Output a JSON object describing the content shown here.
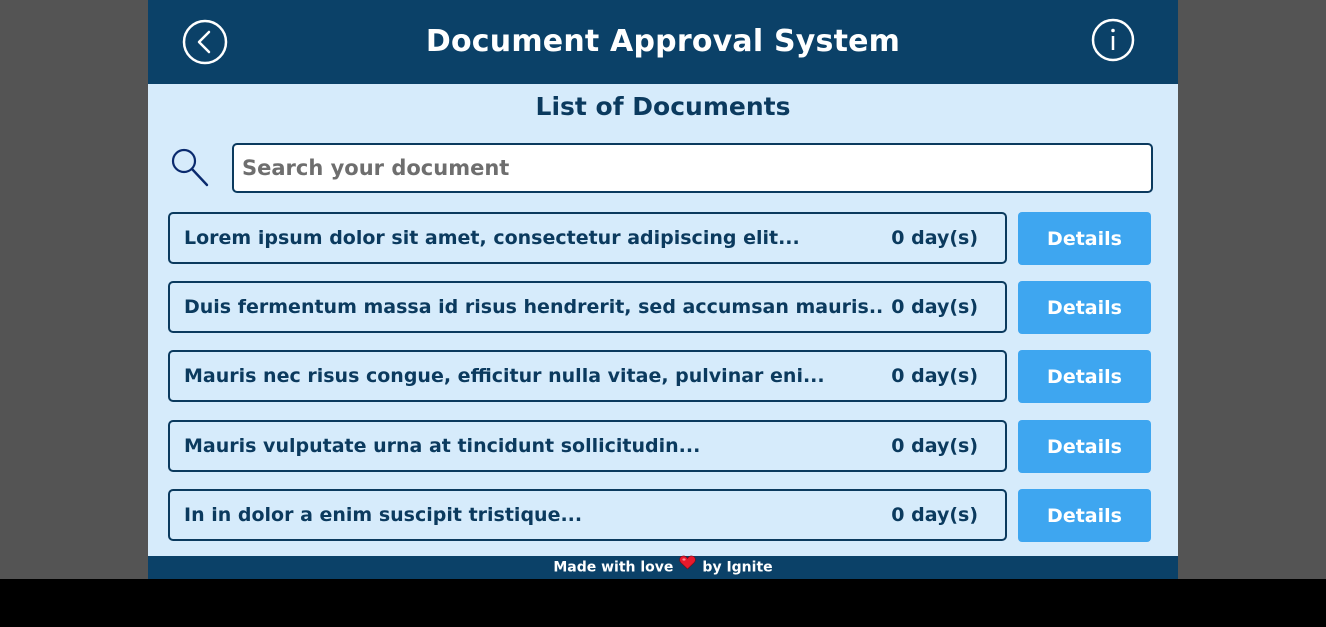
{
  "header": {
    "title": "Document Approval System"
  },
  "main": {
    "subtitle": "List of Documents",
    "search": {
      "placeholder": "Search your document",
      "value": ""
    },
    "documents": [
      {
        "title": "Lorem ipsum dolor sit amet, consectetur adipiscing elit...",
        "days": "0 day(s)",
        "action_label": "Details"
      },
      {
        "title": "Duis fermentum massa id risus hendrerit, sed accumsan mauris...",
        "days": "0 day(s)",
        "action_label": "Details"
      },
      {
        "title": "Mauris nec risus congue, efficitur nulla vitae, pulvinar eni...",
        "days": "0 day(s)",
        "action_label": "Details"
      },
      {
        "title": "Mauris vulputate urna at tincidunt sollicitudin...",
        "days": "0 day(s)",
        "action_label": "Details"
      },
      {
        "title": "In in dolor a enim suscipit tristique...",
        "days": "0 day(s)",
        "action_label": "Details"
      }
    ]
  },
  "footer": {
    "text_before": "Made with love",
    "text_after": "by Ignite"
  },
  "icons": {
    "back": "chevron-left-circle-icon",
    "info": "info-circle-icon",
    "search": "magnifier-icon",
    "heart": "heart-icon"
  },
  "colors": {
    "header_bg": "#0b4168",
    "content_bg": "#d6ebfb",
    "accent_button": "#3ea6f0",
    "text_dark": "#0b3a5e",
    "page_bg": "#545454",
    "heart": "#e8192c"
  }
}
